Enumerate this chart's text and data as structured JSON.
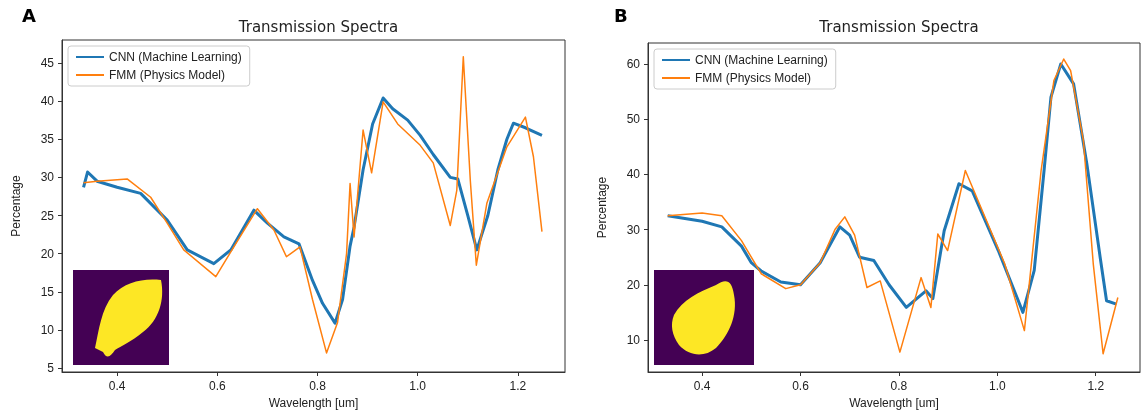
{
  "chart_data": [
    {
      "type": "line",
      "title": "Transmission Spectra",
      "xlabel": "Wavelength [um]",
      "ylabel": "Percentage",
      "annotations": [
        "A"
      ],
      "xlim": [
        0.29,
        1.294
      ],
      "ylim": [
        4.5,
        48
      ],
      "xticks": [
        0.4,
        0.6,
        0.8,
        {
          "value": 1,
          "label": "1.0"
        },
        1.2
      ],
      "yticks": [
        5,
        10,
        15,
        20,
        25,
        30,
        35,
        40,
        45
      ],
      "legend": "top left",
      "grid": false,
      "series": [
        {
          "name": "CNN (Machine Learning)",
          "color": "#1f77b4",
          "x": [
            0.333,
            0.341,
            0.36,
            0.4,
            0.447,
            0.5,
            0.54,
            0.593,
            0.627,
            0.673,
            0.7,
            0.733,
            0.763,
            0.79,
            0.81,
            0.835,
            0.85,
            0.865,
            0.873,
            0.891,
            0.91,
            0.931,
            0.95,
            0.98,
            1.005,
            1.031,
            1.065,
            1.08,
            1.1,
            1.118,
            1.14,
            1.16,
            1.178,
            1.191,
            1.215,
            1.248
          ],
          "values": [
            28.7,
            30.7,
            29.5,
            28.7,
            27.9,
            24.4,
            20.5,
            18.7,
            20.5,
            25.7,
            24,
            22.2,
            21.3,
            16.5,
            13.5,
            10.9,
            14,
            21,
            23.5,
            31,
            37,
            40.4,
            39,
            37.5,
            35.5,
            33,
            30,
            29.8,
            25,
            20.5,
            25,
            31,
            35,
            37.1,
            36.5,
            35.5
          ]
        },
        {
          "name": "FMM (Physics Model)",
          "color": "#ff7f0e",
          "x": [
            0.333,
            0.36,
            0.42,
            0.467,
            0.5,
            0.533,
            0.597,
            0.633,
            0.68,
            0.713,
            0.738,
            0.765,
            0.79,
            0.818,
            0.84,
            0.858,
            0.865,
            0.873,
            0.891,
            0.908,
            0.931,
            0.96,
            1.005,
            1.031,
            1.065,
            1.078,
            1.091,
            1.105,
            1.117,
            1.138,
            1.178,
            1.215,
            1.231,
            1.248
          ],
          "values": [
            29.3,
            29.5,
            29.8,
            27.4,
            24,
            20.5,
            17,
            20.9,
            25.9,
            23.1,
            19.6,
            20.9,
            14,
            7,
            11,
            20,
            29.2,
            22.2,
            36.2,
            30.6,
            39.9,
            37,
            34.2,
            31.9,
            23.7,
            28.3,
            45.8,
            29.6,
            18.5,
            26.6,
            34,
            37.9,
            32.7,
            22.9
          ]
        }
      ]
    },
    {
      "type": "line",
      "title": "Transmission Spectra",
      "xlabel": "Wavelength [um]",
      "ylabel": "Percentage",
      "annotations": [
        "B"
      ],
      "xlim": [
        0.29,
        1.29
      ],
      "ylim": [
        4.2,
        63.8
      ],
      "xticks": [
        0.4,
        0.6,
        0.8,
        {
          "value": 1,
          "label": "1.0"
        },
        1.2
      ],
      "yticks": [
        10,
        20,
        30,
        40,
        50,
        60
      ],
      "legend": "top left",
      "grid": false,
      "series": [
        {
          "name": "CNN (Machine Learning)",
          "color": "#1f77b4",
          "x": [
            0.33,
            0.4,
            0.44,
            0.48,
            0.5,
            0.52,
            0.56,
            0.6,
            0.64,
            0.68,
            0.7,
            0.72,
            0.749,
            0.78,
            0.815,
            0.855,
            0.869,
            0.892,
            0.922,
            0.949,
            1.002,
            1.052,
            1.075,
            1.095,
            1.109,
            1.129,
            1.155,
            1.182,
            1.209,
            1.222,
            1.242
          ],
          "values": [
            32.5,
            31.5,
            30.5,
            27,
            24,
            22.5,
            20.5,
            20,
            24,
            30.5,
            29,
            25,
            24.4,
            20,
            15.9,
            18.9,
            17.5,
            29.8,
            38.3,
            37,
            26.2,
            15,
            22.6,
            40.7,
            54,
            60,
            56.4,
            41.9,
            25,
            17.1,
            16.5
          ]
        },
        {
          "name": "FMM (Physics Model)",
          "color": "#ff7f0e",
          "x": [
            0.33,
            0.4,
            0.44,
            0.48,
            0.52,
            0.57,
            0.6,
            0.64,
            0.67,
            0.69,
            0.71,
            0.735,
            0.762,
            0.802,
            0.845,
            0.865,
            0.879,
            0.899,
            0.935,
            1.015,
            1.055,
            1.089,
            1.115,
            1.135,
            1.149,
            1.175,
            1.195,
            1.215,
            1.245
          ],
          "values": [
            32.5,
            33,
            32.5,
            28,
            22,
            19.3,
            20,
            24,
            30,
            32.3,
            29,
            19.5,
            20.7,
            7.8,
            21.3,
            15.9,
            29.2,
            26.2,
            40.7,
            23.8,
            11.7,
            40.7,
            57,
            60.9,
            58.8,
            46.1,
            23.8,
            7.5,
            17.7
          ]
        }
      ]
    }
  ]
}
